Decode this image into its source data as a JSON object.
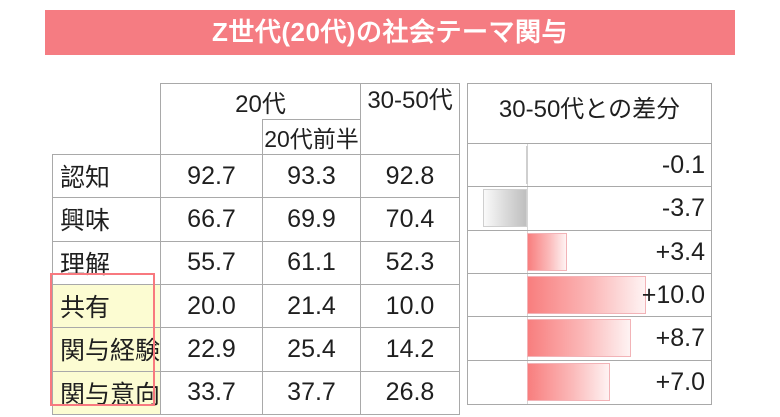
{
  "title": "Z世代(20代)の社会テーマ関与",
  "table": {
    "col_20s": "20代",
    "col_20s_early": "20代前半",
    "col_30_50s": "30-50代",
    "rows": [
      {
        "label": "認知",
        "v20": "92.7",
        "v20early": "93.3",
        "v3050": "92.8",
        "highlight": false
      },
      {
        "label": "興味",
        "v20": "66.7",
        "v20early": "69.9",
        "v3050": "70.4",
        "highlight": false
      },
      {
        "label": "理解",
        "v20": "55.7",
        "v20early": "61.1",
        "v3050": "52.3",
        "highlight": false
      },
      {
        "label": "共有",
        "v20": "20.0",
        "v20early": "21.4",
        "v3050": "10.0",
        "highlight": true
      },
      {
        "label": "関与経験",
        "v20": "22.9",
        "v20early": "25.4",
        "v3050": "14.2",
        "highlight": true
      },
      {
        "label": "関与意向",
        "v20": "33.7",
        "v20early": "37.7",
        "v3050": "26.8",
        "highlight": true
      }
    ]
  },
  "diff_panel": {
    "header": "30-50代との差分",
    "labels": [
      "-0.1",
      "-3.7",
      "+3.4",
      "+10.0",
      "+8.7",
      "+7.0"
    ]
  },
  "colors": {
    "banner_bg": "#F57C82",
    "highlight_bg": "#FCFCD2",
    "highlight_border": "#F8797F",
    "bar_positive": "#F87E7E",
    "bar_negative": "#BFBFBF",
    "grid_border": "#A9A9A9"
  },
  "chart_data": [
    {
      "type": "table",
      "title": "Z世代(20代)の社会テーマ関与",
      "columns": [
        "",
        "20代",
        "20代前半",
        "30-50代"
      ],
      "rows": [
        [
          "認知",
          92.7,
          93.3,
          92.8
        ],
        [
          "興味",
          66.7,
          69.9,
          70.4
        ],
        [
          "理解",
          55.7,
          61.1,
          52.3
        ],
        [
          "共有",
          20.0,
          21.4,
          10.0
        ],
        [
          "関与経験",
          22.9,
          25.4,
          14.2
        ],
        [
          "関与意向",
          33.7,
          37.7,
          26.8
        ]
      ],
      "highlighted_rows": [
        "共有",
        "関与経験",
        "関与意向"
      ]
    },
    {
      "type": "bar",
      "orientation": "horizontal",
      "title": "30-50代との差分",
      "categories": [
        "認知",
        "興味",
        "理解",
        "共有",
        "関与経験",
        "関与意向"
      ],
      "values": [
        -0.1,
        -3.7,
        3.4,
        10.0,
        8.7,
        7.0
      ],
      "value_labels": [
        "-0.1",
        "-3.7",
        "+3.4",
        "+10.0",
        "+8.7",
        "+7.0"
      ],
      "baseline": 0,
      "xlim": [
        -5,
        15.5
      ],
      "grid": false,
      "legend": "none"
    }
  ]
}
